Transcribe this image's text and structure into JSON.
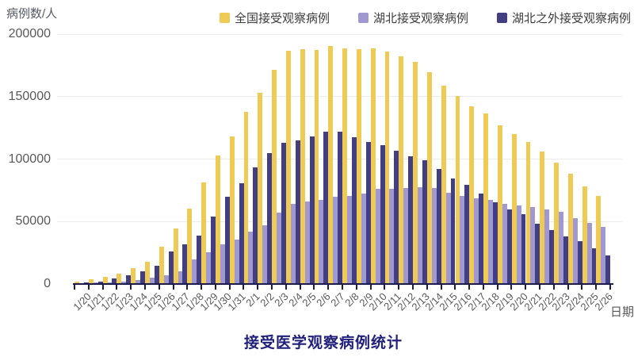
{
  "title": "接受医学观察病例统计",
  "y_axis_title": "病例数/人",
  "x_axis_title": "日期",
  "legend": {
    "items": [
      {
        "label": "全国接受观察病例",
        "color": "#EFCB55"
      },
      {
        "label": "湖北接受观察病例",
        "color": "#A099D1"
      },
      {
        "label": "湖北之外接受观察病例",
        "color": "#423E82"
      }
    ]
  },
  "colors": {
    "axis": "#1b1b4e",
    "grid": "#ebebeb",
    "tick_text": "#595959",
    "title_text": "#20207c"
  },
  "chart_data": {
    "type": "bar",
    "title": "接受医学观察病例统计",
    "xlabel": "日期",
    "ylabel": "病例数/人",
    "ylim": [
      0,
      200000
    ],
    "yticks": [
      0,
      50000,
      100000,
      150000,
      200000
    ],
    "grid": true,
    "legend_position": "top",
    "categories": [
      "1/20",
      "1/21",
      "1/22",
      "1/23",
      "1/24",
      "1/25",
      "1/26",
      "1/27",
      "1/28",
      "1/29",
      "1/30",
      "1/31",
      "2/1",
      "2/2",
      "2/3",
      "2/4",
      "2/5",
      "2/6",
      "2/7",
      "2/8",
      "2/9",
      "2/10",
      "2/11",
      "2/12",
      "2/13",
      "2/14",
      "2/15",
      "2/16",
      "2/17",
      "2/18",
      "2/19",
      "2/20",
      "2/21",
      "2/22",
      "2/23",
      "2/24",
      "2/25",
      "2/26"
    ],
    "series": [
      {
        "name": "全国接受观察病例",
        "color": "#EFCB55",
        "values": [
          2000,
          4000,
          5500,
          8400,
          12500,
          18000,
          30000,
          44500,
          60500,
          81500,
          103000,
          118000,
          137800,
          153000,
          171400,
          186700,
          188000,
          187100,
          190300,
          188800,
          188200,
          188600,
          185800,
          182200,
          178000,
          169500,
          159000,
          150700,
          142000,
          136300,
          126800,
          120000,
          113500,
          106200,
          97200,
          88100,
          78100,
          70700
        ]
      },
      {
        "name": "湖北接受观察病例",
        "color": "#A099D1",
        "values": [
          600,
          1000,
          1200,
          1800,
          3000,
          5000,
          7200,
          10400,
          19700,
          25400,
          31800,
          35600,
          41900,
          47000,
          57000,
          64000,
          66000,
          67500,
          69700,
          70700,
          72200,
          76000,
          76400,
          76600,
          77300,
          76600,
          72800,
          70300,
          68600,
          67500,
          64300,
          62700,
          61800,
          59700,
          58000,
          52700,
          48900,
          45700
        ]
      },
      {
        "name": "湖北之外接受观察病例",
        "color": "#423E82",
        "values": [
          1300,
          2000,
          4500,
          7000,
          10000,
          14500,
          26000,
          32000,
          38900,
          54000,
          70000,
          80600,
          93300,
          104800,
          113000,
          115000,
          118300,
          122000,
          121900,
          117700,
          113500,
          110900,
          106700,
          102400,
          99000,
          91900,
          84500,
          79200,
          72200,
          65400,
          59500,
          55900,
          48500,
          43200,
          38300,
          34100,
          28800,
          23100
        ]
      }
    ]
  }
}
